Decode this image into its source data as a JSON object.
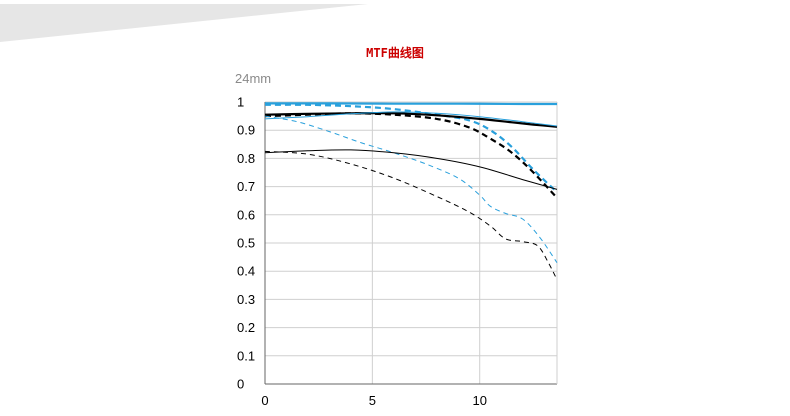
{
  "header": {
    "title": "MTF曲线图",
    "title_color": "#cc0000"
  },
  "chart_data": {
    "type": "line",
    "title": "",
    "focal_length_label": "24mm",
    "xlabel": "",
    "ylabel": "",
    "xlim": [
      0,
      13.6
    ],
    "ylim": [
      0,
      1
    ],
    "x_ticks": [
      0,
      5,
      10
    ],
    "x_tick_labels": [
      "0",
      "5",
      "10"
    ],
    "y_ticks": [
      0,
      0.1,
      0.2,
      0.3,
      0.4,
      0.5,
      0.6,
      0.7,
      0.8,
      0.9,
      1
    ],
    "y_tick_labels": [
      "0",
      "0.1",
      "0.2",
      "0.3",
      "0.4",
      "0.5",
      "0.6",
      "0.7",
      "0.8",
      "0.9",
      "1"
    ],
    "grid": true,
    "legend": "none",
    "colors": {
      "blue": "#29a0dc",
      "black": "#000000",
      "grid": "#cfcfcf",
      "axis": "#666666"
    },
    "series": [
      {
        "color": "blue",
        "dash": "solid",
        "weight": "thick",
        "points": [
          [
            0,
            0.995
          ],
          [
            3,
            0.995
          ],
          [
            6,
            0.994
          ],
          [
            9,
            0.994
          ],
          [
            12,
            0.993
          ],
          [
            13.6,
            0.993
          ]
        ]
      },
      {
        "color": "blue",
        "dash": "dashed",
        "weight": "thick",
        "points": [
          [
            0,
            0.99
          ],
          [
            2,
            0.99
          ],
          [
            4,
            0.985
          ],
          [
            6,
            0.975
          ],
          [
            8,
            0.955
          ],
          [
            9.5,
            0.935
          ],
          [
            10.5,
            0.9
          ],
          [
            11.5,
            0.84
          ],
          [
            12.5,
            0.76
          ],
          [
            13.6,
            0.68
          ]
        ]
      },
      {
        "color": "black",
        "dash": "solid",
        "weight": "thick",
        "points": [
          [
            0,
            0.955
          ],
          [
            2,
            0.958
          ],
          [
            4,
            0.96
          ],
          [
            6,
            0.96
          ],
          [
            8,
            0.953
          ],
          [
            10,
            0.94
          ],
          [
            11.5,
            0.928
          ],
          [
            12.5,
            0.92
          ],
          [
            13.6,
            0.912
          ]
        ]
      },
      {
        "color": "black",
        "dash": "dashed",
        "weight": "thick",
        "points": [
          [
            0,
            0.95
          ],
          [
            2,
            0.955
          ],
          [
            4,
            0.96
          ],
          [
            6,
            0.955
          ],
          [
            8,
            0.94
          ],
          [
            9.5,
            0.91
          ],
          [
            10.5,
            0.87
          ],
          [
            11.5,
            0.82
          ],
          [
            12.5,
            0.75
          ],
          [
            13.6,
            0.66
          ]
        ]
      },
      {
        "color": "blue",
        "dash": "solid",
        "weight": "thin",
        "points": [
          [
            0,
            0.94
          ],
          [
            2,
            0.948
          ],
          [
            4,
            0.958
          ],
          [
            6,
            0.965
          ],
          [
            8,
            0.96
          ],
          [
            10,
            0.948
          ],
          [
            12,
            0.93
          ],
          [
            13.6,
            0.915
          ]
        ]
      },
      {
        "color": "blue",
        "dash": "dashed",
        "weight": "thin",
        "points": [
          [
            0,
            0.95
          ],
          [
            1.5,
            0.93
          ],
          [
            3,
            0.895
          ],
          [
            4.5,
            0.855
          ],
          [
            6,
            0.82
          ],
          [
            7.5,
            0.78
          ],
          [
            9,
            0.73
          ],
          [
            10,
            0.67
          ],
          [
            10.5,
            0.63
          ],
          [
            11.2,
            0.605
          ],
          [
            12,
            0.585
          ],
          [
            12.8,
            0.52
          ],
          [
            13.6,
            0.43
          ]
        ]
      },
      {
        "color": "black",
        "dash": "solid",
        "weight": "thin",
        "points": [
          [
            0,
            0.82
          ],
          [
            2,
            0.827
          ],
          [
            4,
            0.83
          ],
          [
            6,
            0.82
          ],
          [
            8,
            0.8
          ],
          [
            10,
            0.77
          ],
          [
            12,
            0.725
          ],
          [
            13.6,
            0.69
          ]
        ]
      },
      {
        "color": "black",
        "dash": "dashed",
        "weight": "thin",
        "points": [
          [
            0,
            0.825
          ],
          [
            2,
            0.815
          ],
          [
            4,
            0.78
          ],
          [
            6,
            0.73
          ],
          [
            8,
            0.665
          ],
          [
            9.5,
            0.61
          ],
          [
            10.5,
            0.56
          ],
          [
            11.2,
            0.515
          ],
          [
            12,
            0.505
          ],
          [
            12.7,
            0.49
          ],
          [
            13.2,
            0.43
          ],
          [
            13.6,
            0.37
          ]
        ]
      }
    ]
  }
}
